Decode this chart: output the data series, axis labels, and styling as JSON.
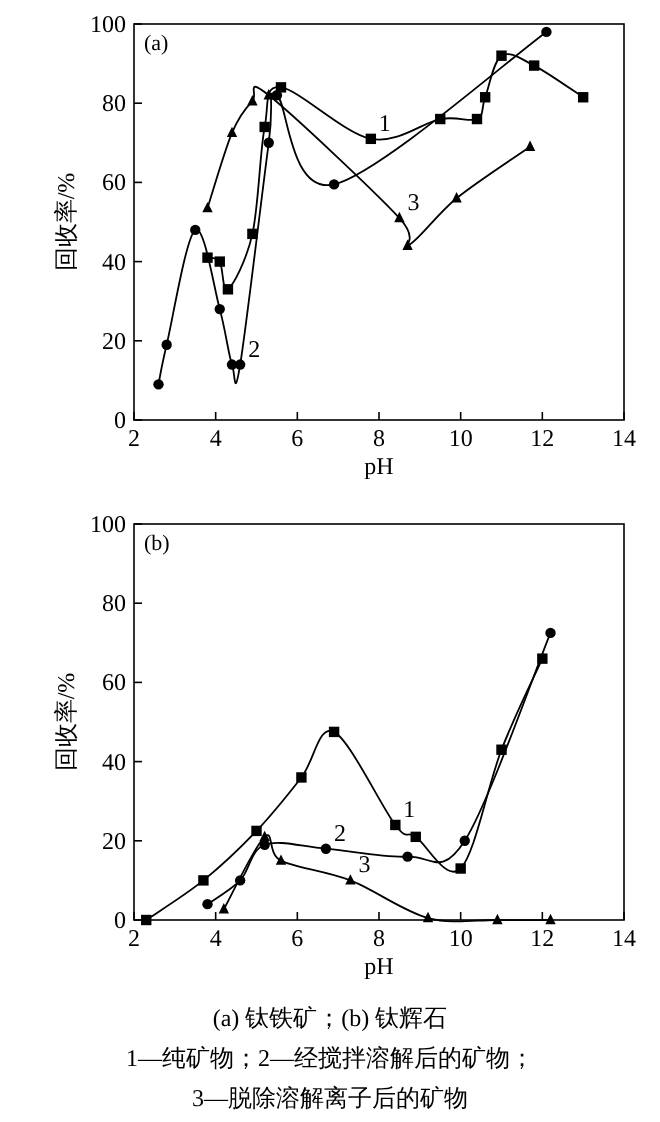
{
  "chart_data": [
    {
      "type": "line",
      "title": "(a)",
      "xlabel": "pH",
      "ylabel": "回收率/%",
      "xlim": [
        2,
        14
      ],
      "ylim": [
        0,
        100
      ],
      "xticks": [
        2,
        4,
        6,
        8,
        10,
        12,
        14
      ],
      "yticks": [
        0,
        20,
        40,
        60,
        80,
        100
      ],
      "legend": false,
      "grid": false,
      "series": [
        {
          "name": "1",
          "color": "#000000",
          "marker": "square",
          "x": [
            3.8,
            4.1,
            4.3,
            4.9,
            5.2,
            5.6,
            7.8,
            9.5,
            10.4,
            10.6,
            11.0,
            11.8,
            13.0
          ],
          "values": [
            41,
            40,
            33,
            47,
            74,
            84,
            71,
            76,
            76,
            81.5,
            92,
            89.5,
            81.5
          ]
        },
        {
          "name": "2",
          "color": "#000000",
          "marker": "circle",
          "x": [
            2.6,
            2.8,
            3.5,
            4.1,
            4.4,
            4.6,
            5.3,
            5.5,
            6.9,
            12.1
          ],
          "values": [
            9,
            19,
            48,
            28,
            14,
            14,
            70,
            82,
            59.5,
            98
          ]
        },
        {
          "name": "3",
          "color": "#000000",
          "marker": "triangle",
          "x": [
            3.8,
            4.4,
            4.9,
            5.3,
            8.5,
            8.7,
            9.9,
            11.7
          ],
          "values": [
            53.5,
            72.5,
            80.5,
            82,
            51,
            44,
            56,
            69
          ]
        }
      ]
    },
    {
      "type": "line",
      "title": "(b)",
      "xlabel": "pH",
      "ylabel": "回收率/%",
      "xlim": [
        2,
        14
      ],
      "ylim": [
        0,
        100
      ],
      "xticks": [
        2,
        4,
        6,
        8,
        10,
        12,
        14
      ],
      "yticks": [
        0,
        20,
        40,
        60,
        80,
        100
      ],
      "legend": false,
      "grid": false,
      "series": [
        {
          "name": "1",
          "color": "#000000",
          "marker": "square",
          "x": [
            2.3,
            3.7,
            5.0,
            6.1,
            6.9,
            8.4,
            8.9,
            10.0,
            11.0,
            12.0
          ],
          "values": [
            0,
            10,
            22.5,
            36,
            47.5,
            24,
            21,
            13,
            43,
            66
          ]
        },
        {
          "name": "2",
          "color": "#000000",
          "marker": "circle",
          "x": [
            3.8,
            4.6,
            5.2,
            6.7,
            8.7,
            10.1,
            12.2
          ],
          "values": [
            4,
            10,
            19,
            18,
            16,
            20,
            72.5
          ]
        },
        {
          "name": "3",
          "color": "#000000",
          "marker": "triangle",
          "x": [
            4.2,
            5.2,
            5.6,
            7.3,
            9.2,
            10.9,
            12.2
          ],
          "values": [
            2.7,
            21,
            15,
            10,
            0.5,
            0,
            0
          ]
        }
      ],
      "annotations": [
        "(a) 钛铁矿；(b) 钛辉石",
        "1—纯矿物；2—经搅拌溶解后的矿物；",
        "3—脱除溶解离子后的矿物"
      ]
    }
  ]
}
